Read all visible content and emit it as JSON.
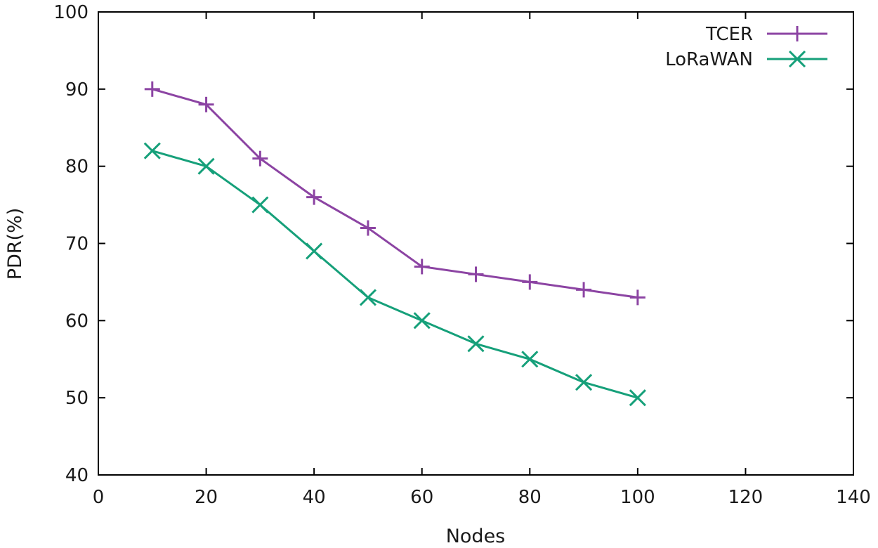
{
  "chart_data": {
    "type": "line",
    "title": "",
    "xlabel": "Nodes",
    "ylabel": "PDR(%)",
    "xlim": [
      0,
      140
    ],
    "ylim": [
      40,
      100
    ],
    "xticks": [
      0,
      20,
      40,
      60,
      80,
      100,
      120,
      140
    ],
    "yticks": [
      40,
      50,
      60,
      70,
      80,
      90,
      100
    ],
    "grid": false,
    "legend_position": "top-right",
    "x": [
      10,
      20,
      30,
      40,
      50,
      60,
      70,
      80,
      90,
      100
    ],
    "series": [
      {
        "name": "TCER",
        "color": "#8c44a3",
        "marker": "plus",
        "values": [
          90,
          88,
          81,
          76,
          72,
          67,
          66,
          65,
          64,
          63
        ]
      },
      {
        "name": "LoRaWAN",
        "color": "#16a07a",
        "marker": "cross",
        "values": [
          82,
          80,
          75,
          69,
          63,
          60,
          57,
          55,
          52,
          50
        ]
      }
    ]
  }
}
